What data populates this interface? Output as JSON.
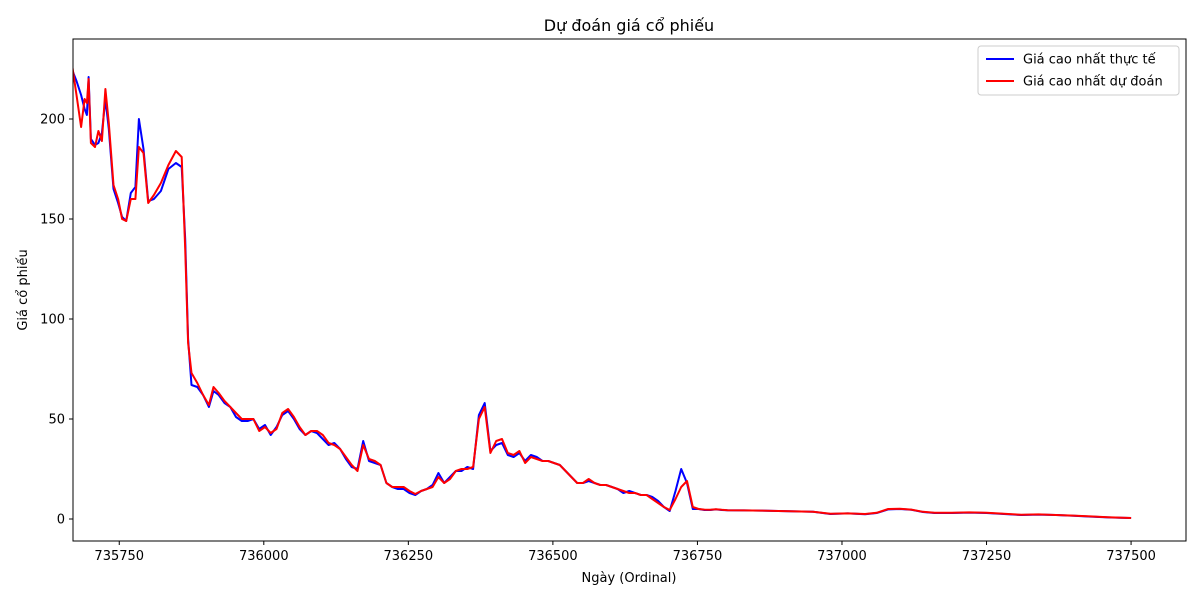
{
  "chart_data": {
    "type": "line",
    "title": "Dự đoán giá cổ phiếu",
    "xlabel": "Ngày (Ordinal)",
    "ylabel": "Giá cổ phiếu",
    "xlim": [
      735670,
      737595
    ],
    "ylim": [
      -11,
      240
    ],
    "xticks": [
      735750,
      736000,
      736250,
      736500,
      736750,
      737000,
      737250,
      737500
    ],
    "yticks": [
      0,
      50,
      100,
      150,
      200
    ],
    "grid": false,
    "legend_position": "top-right",
    "series": [
      {
        "name": "Giá cao nhất thực tế",
        "color": "#0000ff",
        "x": [
          735662,
          735668,
          735676,
          735684,
          735690,
          735694,
          735697,
          735701,
          735708,
          735714,
          735720,
          735726,
          735732,
          735740,
          735748,
          735755,
          735762,
          735770,
          735778,
          735784,
          735792,
          735800,
          735810,
          735822,
          735835,
          735848,
          735858,
          735864,
          735869,
          735875,
          735885,
          735895,
          735905,
          735913,
          735922,
          735932,
          735942,
          735952,
          735962,
          735972,
          735982,
          735992,
          736002,
          736012,
          736022,
          736032,
          736042,
          736052,
          736062,
          736072,
          736082,
          736092,
          736102,
          736112,
          736122,
          736132,
          736142,
          736152,
          736162,
          736172,
          736182,
          736192,
          736202,
          736212,
          736222,
          736232,
          736242,
          736252,
          736262,
          736272,
          736282,
          736292,
          736302,
          736312,
          736322,
          736332,
          736342,
          736352,
          736362,
          736372,
          736382,
          736392,
          736402,
          736412,
          736422,
          736432,
          736442,
          736452,
          736462,
          736472,
          736482,
          736492,
          736502,
          736512,
          736522,
          736532,
          736542,
          736552,
          736562,
          736572,
          736582,
          736592,
          736602,
          736612,
          736622,
          736632,
          736642,
          736652,
          736662,
          736672,
          736682,
          736692,
          736702,
          736712,
          736722,
          736732,
          736742,
          736752,
          736762,
          736772,
          736782,
          736792,
          736802,
          736830,
          736860,
          736890,
          736920,
          736950,
          736980,
          737010,
          737040,
          737060,
          737080,
          737100,
          737120,
          737140,
          737160,
          737190,
          737220,
          737250,
          737280,
          737310,
          737340,
          737370,
          737400,
          737430,
          737460,
          737480,
          737500
        ],
        "y": [
          203,
          225,
          219,
          212,
          205,
          202,
          221,
          190,
          187,
          188,
          193,
          210,
          195,
          165,
          158,
          151,
          149,
          163,
          166,
          200,
          185,
          159,
          160,
          164,
          175,
          178,
          176,
          140,
          90,
          67,
          66,
          62,
          56,
          64,
          62,
          58,
          56,
          51,
          49,
          49,
          50,
          45,
          47,
          42,
          46,
          52,
          54,
          50,
          45,
          42,
          44,
          43,
          40,
          37,
          38,
          35,
          30,
          26,
          25,
          39,
          29,
          28,
          27,
          18,
          16,
          15,
          15,
          13,
          12,
          14,
          15,
          17,
          23,
          18,
          21,
          24,
          24,
          26,
          25,
          52,
          58,
          34,
          37,
          38,
          32,
          31,
          33,
          29,
          32,
          31,
          29,
          29,
          28,
          27,
          24,
          21,
          18,
          18,
          19,
          18,
          17,
          17,
          16,
          15,
          13,
          14,
          13,
          12,
          12,
          11,
          9,
          6,
          4,
          14,
          25,
          18,
          5,
          5,
          4.5,
          4.5,
          4.8,
          4.5,
          4.4,
          4.3,
          4.2,
          4.0,
          3.8,
          3.6,
          2.5,
          2.8,
          2.4,
          3.0,
          4.8,
          5.0,
          4.6,
          3.5,
          3.0,
          3.0,
          3.2,
          3.0,
          2.5,
          2.0,
          2.2,
          2.0,
          1.6,
          1.2,
          0.8,
          0.6,
          0.5
        ]
      },
      {
        "name": "Giá cao nhất dự đoán",
        "color": "#ff0000",
        "x": [
          735662,
          735668,
          735676,
          735684,
          735690,
          735694,
          735697,
          735701,
          735708,
          735714,
          735720,
          735726,
          735732,
          735740,
          735748,
          735755,
          735762,
          735770,
          735778,
          735784,
          735792,
          735800,
          735810,
          735822,
          735835,
          735848,
          735858,
          735864,
          735869,
          735875,
          735885,
          735895,
          735905,
          735913,
          735922,
          735932,
          735942,
          735952,
          735962,
          735972,
          735982,
          735992,
          736002,
          736012,
          736022,
          736032,
          736042,
          736052,
          736062,
          736072,
          736082,
          736092,
          736102,
          736112,
          736122,
          736132,
          736142,
          736152,
          736162,
          736172,
          736182,
          736192,
          736202,
          736212,
          736222,
          736232,
          736242,
          736252,
          736262,
          736272,
          736282,
          736292,
          736302,
          736312,
          736322,
          736332,
          736342,
          736352,
          736362,
          736372,
          736382,
          736392,
          736402,
          736412,
          736422,
          736432,
          736442,
          736452,
          736462,
          736472,
          736482,
          736492,
          736502,
          736512,
          736522,
          736532,
          736542,
          736552,
          736562,
          736572,
          736582,
          736592,
          736602,
          736612,
          736622,
          736632,
          736642,
          736652,
          736662,
          736672,
          736682,
          736692,
          736702,
          736712,
          736722,
          736732,
          736742,
          736752,
          736762,
          736772,
          736782,
          736792,
          736802,
          736830,
          736860,
          736890,
          736920,
          736950,
          736980,
          737010,
          737040,
          737060,
          737080,
          737100,
          737120,
          737140,
          737160,
          737190,
          737220,
          737250,
          737280,
          737310,
          737340,
          737370,
          737400,
          737430,
          737460,
          737480,
          737500
        ],
        "y": [
          206,
          228,
          212,
          196,
          210,
          208,
          220,
          188,
          186,
          194,
          189,
          215,
          198,
          167,
          160,
          150,
          149,
          160,
          160,
          186,
          183,
          158,
          162,
          168,
          177,
          184,
          181,
          135,
          88,
          73,
          68,
          62,
          57,
          66,
          63,
          59,
          56,
          53,
          50,
          50,
          50,
          44,
          46,
          43,
          45,
          53,
          55,
          51,
          46,
          42,
          44,
          44,
          42,
          38,
          37,
          35,
          31,
          27,
          24,
          37,
          30,
          29,
          27,
          18,
          16,
          16,
          16,
          14,
          12.5,
          14,
          15,
          16,
          21,
          18,
          20,
          24,
          25,
          25,
          26,
          50,
          56,
          33,
          39,
          40,
          33,
          32,
          34,
          28,
          31,
          30,
          29,
          29,
          28,
          27,
          24,
          21,
          18,
          18,
          20,
          18,
          17,
          17,
          16,
          15,
          14,
          13,
          13,
          12,
          12,
          10,
          8,
          6,
          4.5,
          10,
          16,
          19,
          6,
          5,
          4.7,
          4.6,
          4.9,
          4.6,
          4.4,
          4.3,
          4.2,
          4.0,
          3.8,
          3.6,
          2.6,
          2.8,
          2.5,
          3.1,
          5.0,
          5.1,
          4.7,
          3.6,
          3.1,
          3.1,
          3.3,
          3.1,
          2.6,
          2.1,
          2.3,
          2.0,
          1.7,
          1.3,
          0.9,
          0.7,
          0.5
        ]
      }
    ]
  }
}
